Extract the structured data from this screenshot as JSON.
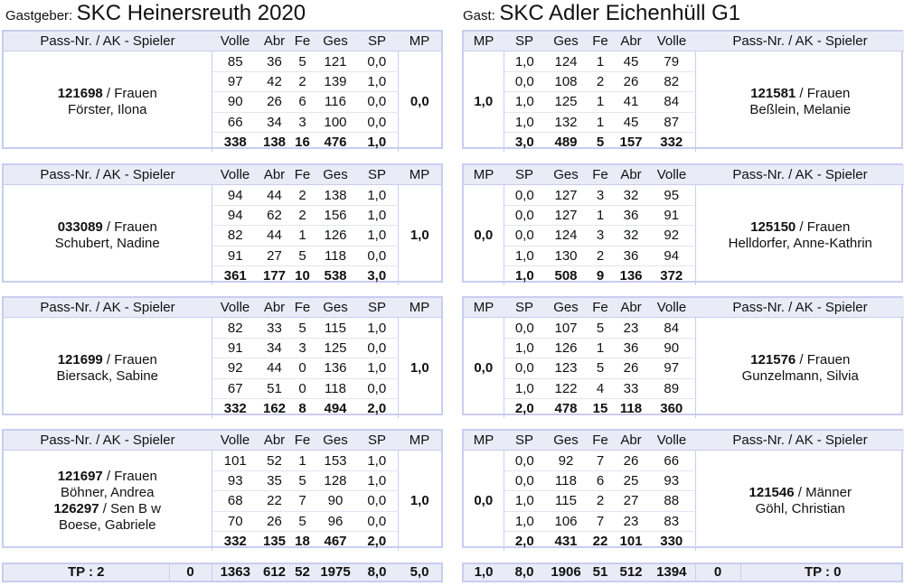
{
  "host": {
    "prefix": "Gastgeber:",
    "name": "SKC Heinersreuth 2020"
  },
  "guest": {
    "prefix": "Gast:",
    "name": "SKC Adler Eichenhüll G1"
  },
  "headers": {
    "player": "Pass-Nr. / AK - Spieler",
    "volle": "Volle",
    "abr": "Abr",
    "fe": "Fe",
    "ges": "Ges",
    "sp": "SP",
    "mp": "MP"
  },
  "matches": [
    {
      "left": {
        "players": [
          {
            "pass": "121698",
            "ak": " / Frauen",
            "name": "Förster, Ilona"
          }
        ],
        "rows": [
          [
            "85",
            "36",
            "5",
            "121",
            "0,0"
          ],
          [
            "97",
            "42",
            "2",
            "139",
            "1,0"
          ],
          [
            "90",
            "26",
            "6",
            "116",
            "0,0"
          ],
          [
            "66",
            "34",
            "3",
            "100",
            "0,0"
          ]
        ],
        "sum": [
          "338",
          "138",
          "16",
          "476",
          "1,0"
        ],
        "mp": "0,0"
      },
      "right": {
        "players": [
          {
            "pass": "121581",
            "ak": " / Frauen",
            "name": "Beßlein, Melanie"
          }
        ],
        "rows": [
          [
            "1,0",
            "124",
            "1",
            "45",
            "79"
          ],
          [
            "0,0",
            "108",
            "2",
            "26",
            "82"
          ],
          [
            "1,0",
            "125",
            "1",
            "41",
            "84"
          ],
          [
            "1,0",
            "132",
            "1",
            "45",
            "87"
          ]
        ],
        "sum": [
          "3,0",
          "489",
          "5",
          "157",
          "332"
        ],
        "mp": "1,0"
      }
    },
    {
      "left": {
        "players": [
          {
            "pass": "033089",
            "ak": " / Frauen",
            "name": "Schubert, Nadine"
          }
        ],
        "rows": [
          [
            "94",
            "44",
            "2",
            "138",
            "1,0"
          ],
          [
            "94",
            "62",
            "2",
            "156",
            "1,0"
          ],
          [
            "82",
            "44",
            "1",
            "126",
            "1,0"
          ],
          [
            "91",
            "27",
            "5",
            "118",
            "0,0"
          ]
        ],
        "sum": [
          "361",
          "177",
          "10",
          "538",
          "3,0"
        ],
        "mp": "1,0"
      },
      "right": {
        "players": [
          {
            "pass": "125150",
            "ak": " / Frauen",
            "name": "Helldorfer, Anne-Kathrin"
          }
        ],
        "rows": [
          [
            "0,0",
            "127",
            "3",
            "32",
            "95"
          ],
          [
            "0,0",
            "127",
            "1",
            "36",
            "91"
          ],
          [
            "0,0",
            "124",
            "3",
            "32",
            "92"
          ],
          [
            "1,0",
            "130",
            "2",
            "36",
            "94"
          ]
        ],
        "sum": [
          "1,0",
          "508",
          "9",
          "136",
          "372"
        ],
        "mp": "0,0"
      }
    },
    {
      "left": {
        "players": [
          {
            "pass": "121699",
            "ak": " / Frauen",
            "name": "Biersack, Sabine"
          }
        ],
        "rows": [
          [
            "82",
            "33",
            "5",
            "115",
            "1,0"
          ],
          [
            "91",
            "34",
            "3",
            "125",
            "0,0"
          ],
          [
            "92",
            "44",
            "0",
            "136",
            "1,0"
          ],
          [
            "67",
            "51",
            "0",
            "118",
            "0,0"
          ]
        ],
        "sum": [
          "332",
          "162",
          "8",
          "494",
          "2,0"
        ],
        "mp": "1,0"
      },
      "right": {
        "players": [
          {
            "pass": "121576",
            "ak": " / Frauen",
            "name": "Gunzelmann, Silvia"
          }
        ],
        "rows": [
          [
            "0,0",
            "107",
            "5",
            "23",
            "84"
          ],
          [
            "1,0",
            "126",
            "1",
            "36",
            "90"
          ],
          [
            "0,0",
            "123",
            "5",
            "26",
            "97"
          ],
          [
            "1,0",
            "122",
            "4",
            "33",
            "89"
          ]
        ],
        "sum": [
          "2,0",
          "478",
          "15",
          "118",
          "360"
        ],
        "mp": "0,0"
      }
    },
    {
      "left": {
        "players": [
          {
            "pass": "121697",
            "ak": " / Frauen",
            "name": "Böhner, Andrea"
          },
          {
            "pass": "126297",
            "ak": " / Sen B w",
            "name": "Boese, Gabriele"
          }
        ],
        "rows": [
          [
            "101",
            "52",
            "1",
            "153",
            "1,0"
          ],
          [
            "93",
            "35",
            "5",
            "128",
            "1,0"
          ],
          [
            "68",
            "22",
            "7",
            "90",
            "0,0"
          ],
          [
            "70",
            "26",
            "5",
            "96",
            "0,0"
          ]
        ],
        "sum": [
          "332",
          "135",
          "18",
          "467",
          "2,0"
        ],
        "mp": "1,0"
      },
      "right": {
        "players": [
          {
            "pass": "121546",
            "ak": " / Männer",
            "name": "Göhl, Christian"
          }
        ],
        "rows": [
          [
            "0,0",
            "92",
            "7",
            "26",
            "66"
          ],
          [
            "0,0",
            "118",
            "6",
            "25",
            "93"
          ],
          [
            "1,0",
            "115",
            "2",
            "27",
            "88"
          ],
          [
            "1,0",
            "106",
            "7",
            "23",
            "83"
          ]
        ],
        "sum": [
          "2,0",
          "431",
          "22",
          "101",
          "330"
        ],
        "mp": "0,0"
      }
    }
  ],
  "totals": {
    "left": {
      "tp": "TP : 2",
      "extra": "0",
      "volle": "1363",
      "abr": "612",
      "fe": "52",
      "ges": "1975",
      "sp": "8,0",
      "mp": "5,0"
    },
    "right": {
      "mp": "1,0",
      "sp": "8,0",
      "ges": "1906",
      "fe": "51",
      "abr": "512",
      "volle": "1394",
      "extra": "0",
      "tp": "TP : 0"
    }
  }
}
